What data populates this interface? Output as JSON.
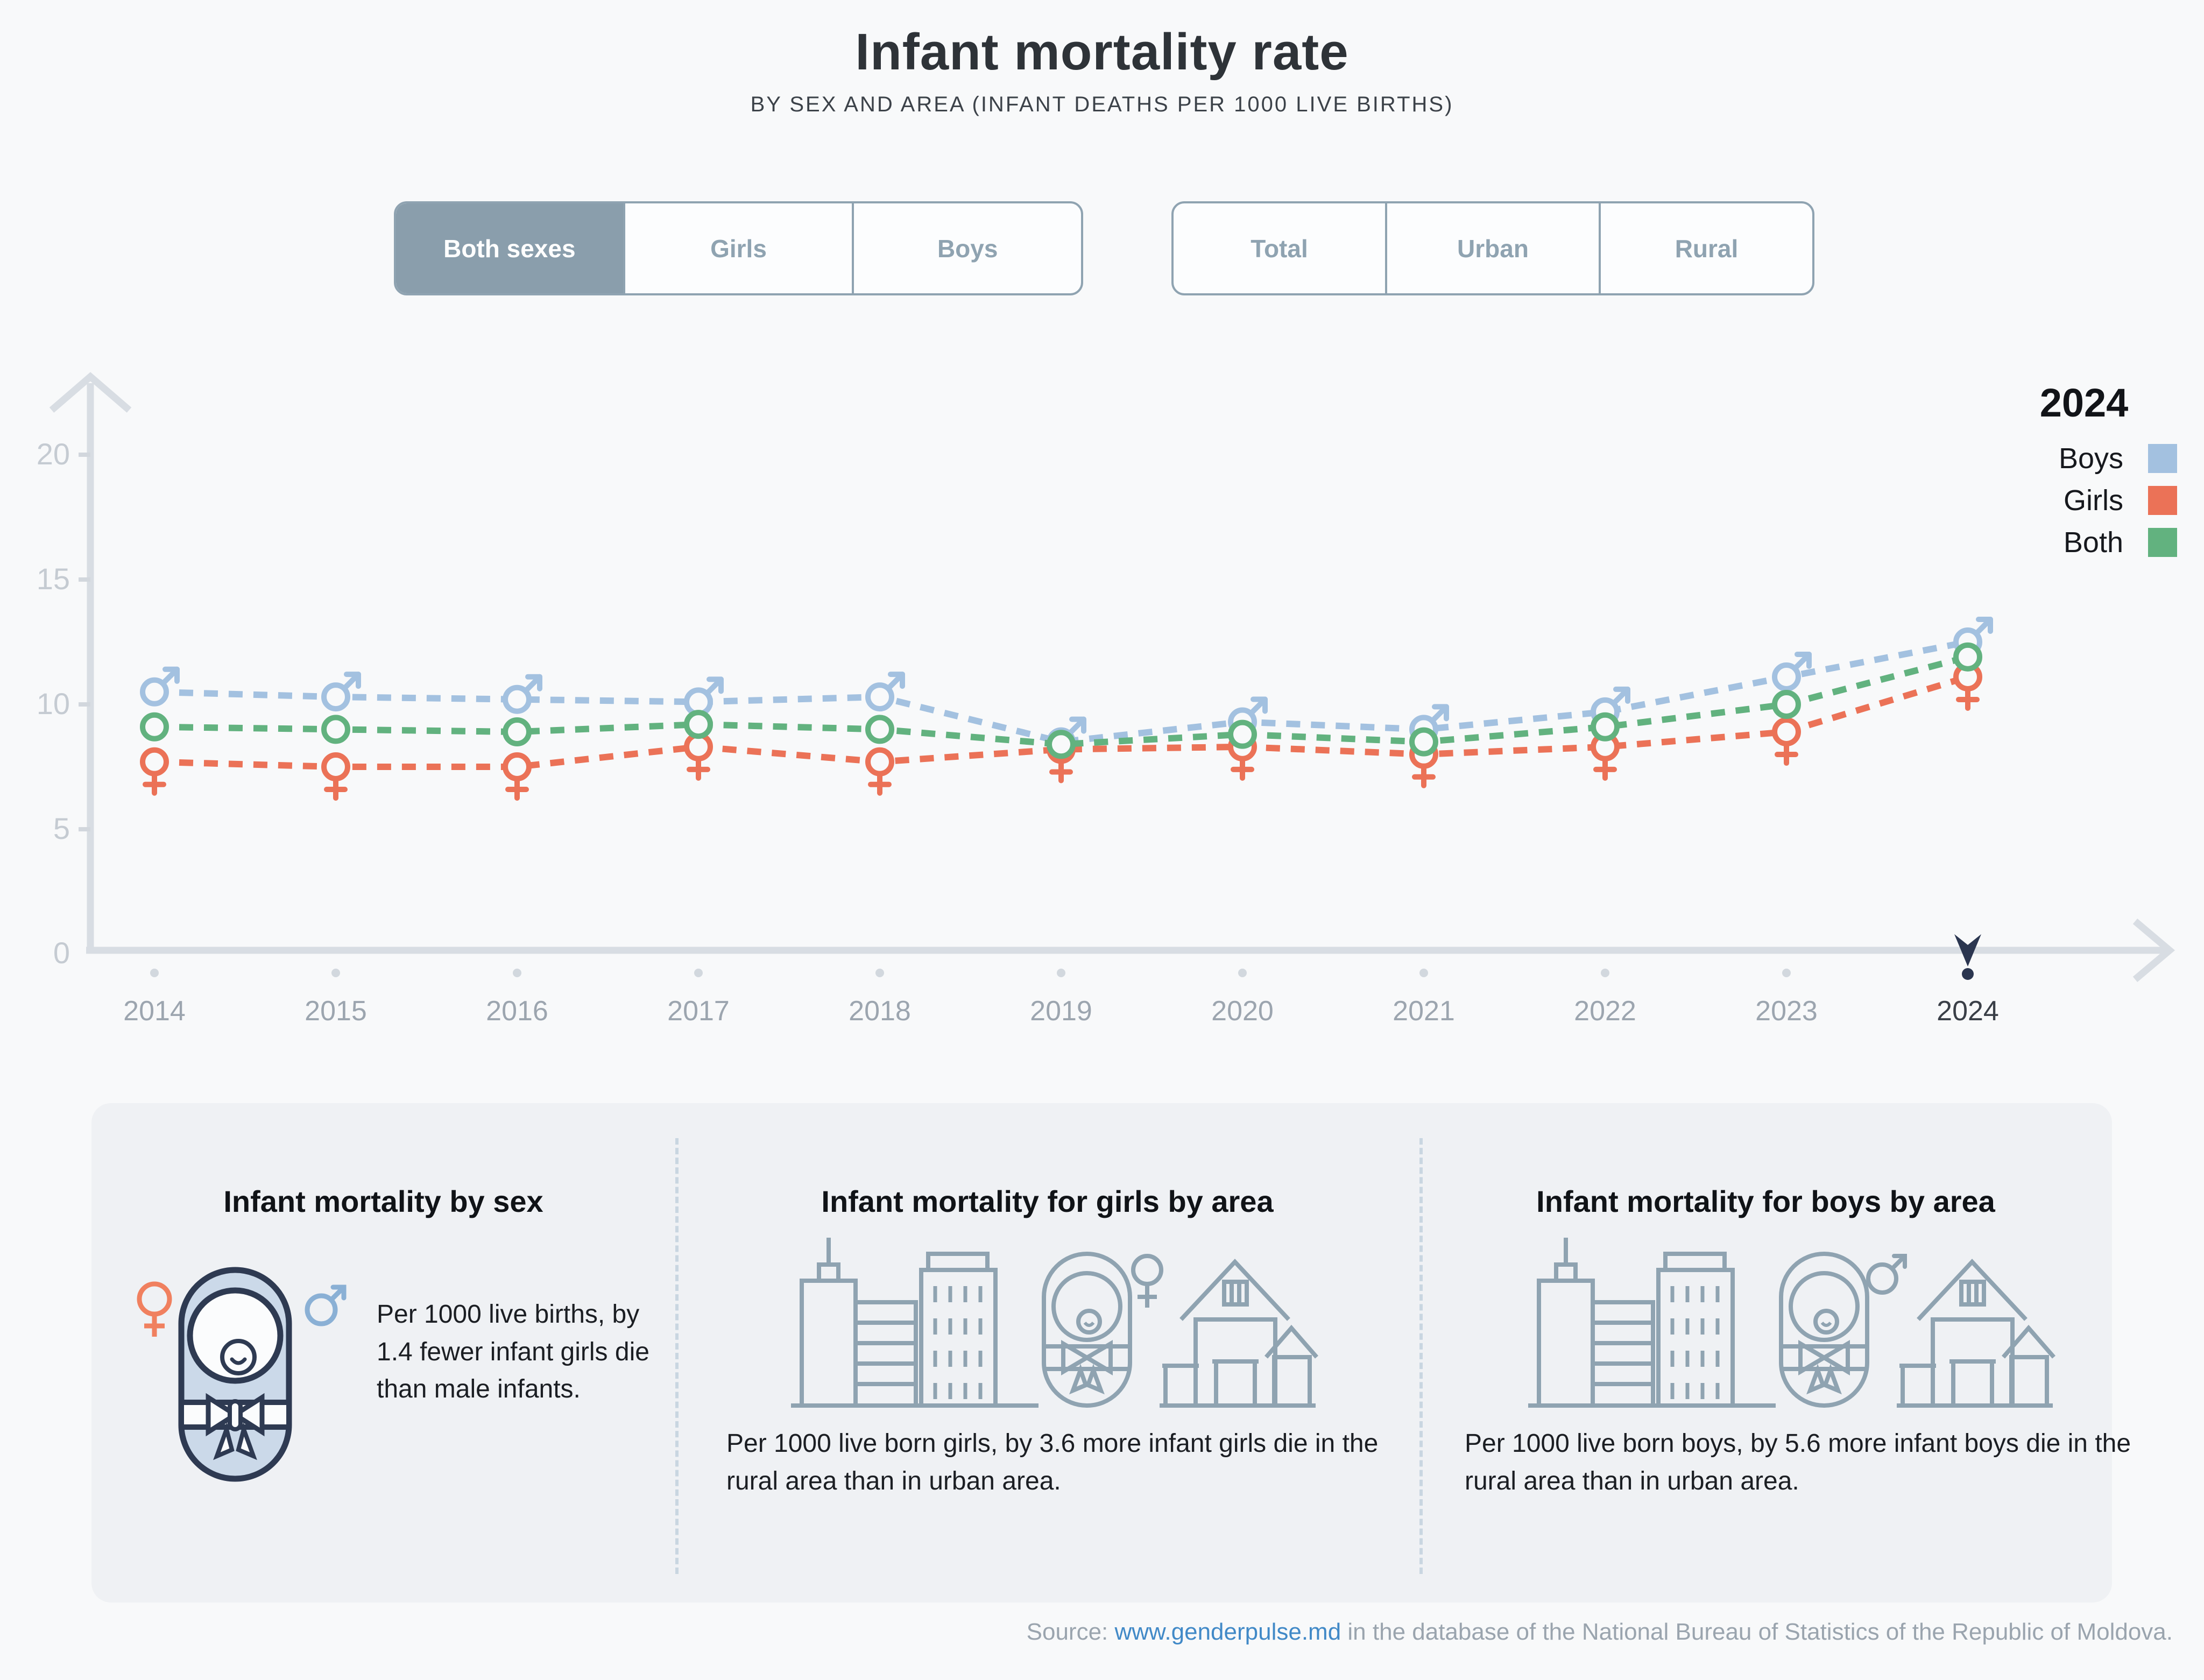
{
  "header": {
    "title": "Infant mortality rate",
    "subtitle": "BY SEX AND AREA (INFANT DEATHS PER 1000 LIVE BIRTHS)"
  },
  "filters": {
    "sex": {
      "options": [
        "Both sexes",
        "Girls",
        "Boys"
      ],
      "active": "Both sexes"
    },
    "area": {
      "options": [
        "Total",
        "Urban",
        "Rural"
      ],
      "active": ""
    }
  },
  "chart_data": {
    "type": "line",
    "x": [
      "2014",
      "2015",
      "2016",
      "2017",
      "2018",
      "2019",
      "2020",
      "2021",
      "2022",
      "2023",
      "2024"
    ],
    "series": [
      {
        "name": "Boys",
        "marker": "male",
        "color": "#A3C1E0",
        "values": [
          10.5,
          10.3,
          10.2,
          10.1,
          10.3,
          8.5,
          9.3,
          9.0,
          9.7,
          11.1,
          12.5
        ]
      },
      {
        "name": "Girls",
        "marker": "female",
        "color": "#EB7257",
        "values": [
          7.7,
          7.5,
          7.5,
          8.3,
          7.7,
          8.2,
          8.3,
          8.0,
          8.3,
          8.9,
          11.1
        ]
      },
      {
        "name": "Both",
        "marker": "circle",
        "color": "#62B27F",
        "values": [
          9.1,
          9.0,
          8.9,
          9.2,
          9.0,
          8.4,
          8.8,
          8.5,
          9.1,
          10.0,
          11.9
        ]
      }
    ],
    "ylim": [
      0,
      20
    ],
    "yticks": [
      0,
      5,
      10,
      15,
      20
    ],
    "grid": false,
    "line_style": "dashed",
    "legend": {
      "title": "2024",
      "position": "top-right"
    },
    "highlighted_year": "2024"
  },
  "cards": [
    {
      "title": "Infant mortality by sex",
      "body": "Per 1000 live births, by 1.4 fewer infant girls die than male infants."
    },
    {
      "title": "Infant mortality for girls by area",
      "body": "Per 1000 live born girls, by 3.6 more infant girls die in the rural area than in urban area."
    },
    {
      "title": "Infant mortality for boys by area",
      "body": "Per 1000 live born boys, by 5.6 more infant boys die in the rural area than in urban area."
    }
  ],
  "source": {
    "prefix": "Source: ",
    "link": "www.genderpulse.md",
    "suffix": " in the database of the National Bureau of Statistics of the Republic of Moldova."
  }
}
